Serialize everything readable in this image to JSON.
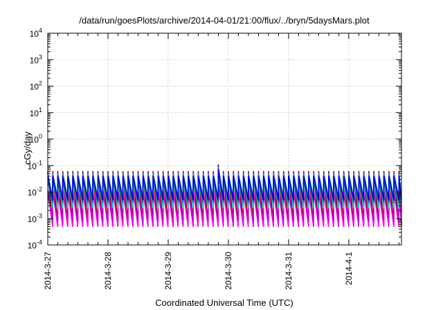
{
  "chart_data": {
    "type": "line",
    "title": "/data/run/goesPlots/archive/2014-04-01/21:00/flux/../bryn/5daysMars.plot",
    "xlabel": "Coordinated Universal Time (UTC)",
    "ylabel": "cGy/day",
    "yscale": "log",
    "ylim": [
      0.0001,
      10000
    ],
    "xlim": [
      "2014-03-27 00:00",
      "2014-04-01 21:00"
    ],
    "grid": true,
    "legend": "none",
    "y_ticks": [
      {
        "base": "10",
        "exp": "4"
      },
      {
        "base": "10",
        "exp": "3"
      },
      {
        "base": "10",
        "exp": "2"
      },
      {
        "base": "10",
        "exp": "1"
      },
      {
        "base": "10",
        "exp": "0"
      },
      {
        "base": "10",
        "exp": "-1"
      },
      {
        "base": "10",
        "exp": "-2"
      },
      {
        "base": "10",
        "exp": "-3"
      },
      {
        "base": "10",
        "exp": "-4"
      }
    ],
    "x_ticks": [
      "2014-3-27",
      "2014-3-28",
      "2014-3-29",
      "2014-3-30",
      "2014-3-31",
      "2014-4-1"
    ],
    "sawtooth_period_hours": 2,
    "series": [
      {
        "color": "#ff0000",
        "peak": 0.06,
        "trough": 0.0005
      },
      {
        "color": "#8b0000",
        "peak": 0.055,
        "trough": 0.0006
      },
      {
        "color": "#ff00ff",
        "peak": 0.012,
        "trough": 0.0005
      },
      {
        "color": "#cc00cc",
        "peak": 0.009,
        "trough": 0.0008
      },
      {
        "color": "#00ced1",
        "peak": 0.035,
        "trough": 0.0025
      },
      {
        "color": "#008b8b",
        "peak": 0.025,
        "trough": 0.004
      },
      {
        "color": "#1e90ff",
        "peak": 0.05,
        "trough": 0.006
      },
      {
        "color": "#0000cd",
        "peak": 0.04,
        "trough": 0.005
      }
    ]
  }
}
